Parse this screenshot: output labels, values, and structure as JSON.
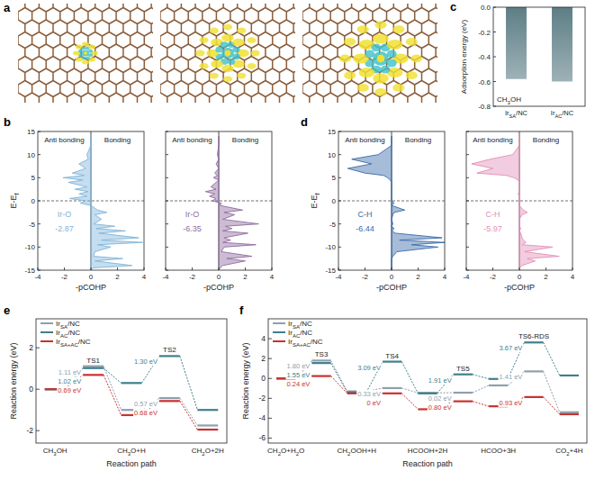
{
  "chart_data": [
    {
      "type": "diagram",
      "panel": "a"
    },
    {
      "type": "cohp",
      "panel": "b",
      "ylabel": "E-Ef",
      "xlabel": "-pCOHP",
      "annotations": [
        "Anti bonding",
        "Bonding"
      ],
      "bond": "Ir-O",
      "icohp": -2.87,
      "xlim": [
        -4,
        4
      ],
      "xticks": [
        -4,
        -2,
        0,
        2,
        4
      ],
      "ylim": [
        -15,
        15
      ],
      "yticks": [
        -15,
        -10,
        -5,
        0,
        5,
        10,
        15
      ],
      "series": [
        {
          "color": "#7fb3d9",
          "x": [
            0,
            0,
            -0.3,
            -0.2,
            -0.9,
            -0.4,
            -1.4,
            -0.5,
            -2.1,
            -0.6,
            -1.7,
            -0.3,
            -1.2,
            -0.2,
            -0.9,
            -0.3,
            -1.6,
            -0.4,
            -0.8,
            0,
            0.5,
            1.2,
            0.3,
            0.8,
            0.2,
            1.8,
            0.4,
            2.6,
            0.6,
            3.6,
            0.8,
            3.9,
            0.5,
            1.5,
            0.3,
            0.2,
            2.4,
            0.3,
            3.1,
            0.2,
            0
          ],
          "y": [
            14,
            12,
            10,
            9,
            8,
            7,
            6,
            5.5,
            5,
            4.5,
            4,
            3,
            2.5,
            2,
            1.5,
            1,
            0.5,
            0,
            -0.5,
            -1,
            -2,
            -2.5,
            -3,
            -4,
            -5,
            -5.5,
            -6,
            -6.5,
            -7,
            -8,
            -8.5,
            -9,
            -9.5,
            -10,
            -11,
            -12,
            -12.5,
            -13,
            -14,
            -14.5,
            -15
          ]
        }
      ]
    },
    {
      "type": "cohp",
      "xlabel": "-pCOHP",
      "annotations": [
        "Anti bonding",
        "Bonding"
      ],
      "bond": "Ir-O",
      "icohp": -6.35,
      "tick_labels": "x",
      "xlim": [
        -4,
        4
      ],
      "xticks": [
        -4,
        -2,
        0,
        2,
        4
      ],
      "ylim": [
        -15,
        15
      ],
      "yticks": [
        -15,
        -10,
        -5,
        0,
        5,
        10,
        15
      ],
      "series": [
        {
          "color": "#8e6b9e",
          "x": [
            0,
            0,
            -0.1,
            0,
            -0.2,
            0,
            -0.3,
            -0.1,
            -0.4,
            0,
            -0.2,
            -0.6,
            -0.2,
            -1.0,
            -0.3,
            -0.7,
            -0.2,
            -0.5,
            0.2,
            0.1,
            1.8,
            0.4,
            1.2,
            0.3,
            3.0,
            0.5,
            1.0,
            0.3,
            2.2,
            0.4,
            0.9,
            0.3,
            2.8,
            0.4,
            0.2,
            2.5,
            0.6,
            2.0,
            0.3,
            0.1,
            0
          ],
          "y": [
            14,
            12,
            10,
            9,
            8,
            7,
            6,
            5.5,
            5,
            4.5,
            4,
            3,
            2.5,
            2,
            1.5,
            1,
            0.5,
            0,
            -0.5,
            -1,
            -2,
            -2.5,
            -3,
            -4,
            -5,
            -5.5,
            -6,
            -6.5,
            -7,
            -8,
            -8.5,
            -9,
            -9.5,
            -10,
            -11,
            -12,
            -12.5,
            -13,
            -14,
            -14.5,
            -15
          ]
        }
      ]
    },
    {
      "type": "bar",
      "panel": "c",
      "ylabel": "Adsorption energy (eV)",
      "annotations": [
        "CH3OH"
      ],
      "categories": [
        "IrSA/NC",
        "IrAC/NC"
      ],
      "values": [
        -0.58,
        -0.6
      ],
      "color": "#5d7e86",
      "ylim": [
        -0.8,
        0
      ],
      "yticks": [
        {
          "value": 0,
          "label": "0.0"
        },
        -0.2,
        -0.4,
        -0.6,
        -0.8
      ]
    },
    {
      "type": "cohp",
      "panel": "d",
      "ylabel": "E-Ef",
      "xlabel": "-pCOHP",
      "annotations": [
        "Anti bonding",
        "Bonding"
      ],
      "bond": "C-H",
      "icohp": -6.44,
      "xlim": [
        -4,
        4
      ],
      "xticks": [
        -4,
        -2,
        0,
        2,
        4
      ],
      "ylim": [
        -15,
        15
      ],
      "yticks": [
        -15,
        -10,
        -5,
        0,
        5,
        10,
        15
      ],
      "series": [
        {
          "color": "#3a6aa8",
          "x": [
            0,
            0,
            -1.0,
            -3.0,
            -1.5,
            -3.3,
            -2.0,
            -0.6,
            -0.3,
            -0.1,
            0,
            0,
            0,
            0,
            0,
            0,
            0,
            0,
            0.2,
            0,
            1.0,
            0.2,
            0.1,
            0,
            0.1,
            0,
            0.2,
            0,
            0.3,
            3.8,
            0.6,
            4.0,
            1.5,
            3.5,
            0.4,
            0.1,
            0,
            0,
            0,
            0,
            0
          ],
          "y": [
            14,
            12,
            10,
            9,
            8,
            7,
            6,
            5.5,
            5,
            4.5,
            4,
            3,
            2.5,
            2,
            1.5,
            1,
            0.5,
            0,
            -0.5,
            -1,
            -2,
            -2.5,
            -3,
            -4,
            -5,
            -5.5,
            -6,
            -6.5,
            -7,
            -8,
            -8.5,
            -9,
            -9.5,
            -10,
            -11,
            -12,
            -12.5,
            -13,
            -14,
            -14.5,
            -15
          ]
        }
      ]
    },
    {
      "type": "cohp",
      "xlabel": "-pCOHP",
      "annotations": [
        "Anti bonding",
        "Bonding"
      ],
      "bond": "C-H",
      "icohp": -5.97,
      "tick_labels": "x",
      "xlim": [
        -4,
        4
      ],
      "xticks": [
        -4,
        -2,
        0,
        2,
        4
      ],
      "ylim": [
        -15,
        15
      ],
      "yticks": [
        -15,
        -10,
        -5,
        0,
        5,
        10,
        15
      ],
      "series": [
        {
          "color": "#e38fb8",
          "x": [
            0,
            0,
            -0.5,
            -2.2,
            -3.6,
            -2.0,
            -3.2,
            -1.0,
            -0.4,
            -0.1,
            0,
            0,
            0,
            0,
            -0.1,
            0,
            0,
            0,
            0,
            0,
            0.3,
            0.6,
            0.2,
            0,
            0,
            0,
            0.1,
            0,
            0.1,
            0.2,
            0.3,
            0.5,
            0.2,
            2.5,
            0.4,
            3.0,
            0.6,
            1.2,
            0.2,
            0,
            0
          ],
          "y": [
            14,
            12,
            10,
            9,
            8,
            7,
            6,
            5.5,
            5,
            4.5,
            4,
            3,
            2.5,
            2,
            1.5,
            1,
            0.5,
            0,
            -0.5,
            -1,
            -2,
            -2.5,
            -3,
            -4,
            -5,
            -5.5,
            -6,
            -6.5,
            -7,
            -8,
            -8.5,
            -9,
            -9.5,
            -10,
            -11,
            -12,
            -12.5,
            -13,
            -14,
            -14.5,
            -15
          ]
        }
      ]
    },
    {
      "type": "energy_profile",
      "panel": "e",
      "ylabel": "Reaction energy (eV)",
      "xlabel": "Reaction path",
      "legend": "upper left",
      "categories": [
        "CH3OH",
        null,
        "CH3O+H",
        null,
        "CH2O+2H"
      ],
      "ts_labels": [
        null,
        "TS1",
        null,
        "TS2",
        null
      ],
      "ylim": [
        -2.6,
        3.4
      ],
      "yticks": [
        -2,
        0,
        2
      ],
      "series": [
        {
          "name": "IrSA/NC",
          "color": "#8e9fad",
          "values": [
            0,
            1.11,
            -1.0,
            -0.43,
            -1.75
          ],
          "barrier_labels": [
            null,
            "1.11 eV",
            null,
            "0.57 eV",
            null
          ]
        },
        {
          "name": "IrAC/NC",
          "color": "#3f7f8c",
          "values": [
            0,
            1.02,
            0.3,
            1.6,
            -1.0
          ],
          "barrier_labels": [
            null,
            "1.02 eV",
            null,
            "1.30 eV",
            null
          ]
        },
        {
          "name": "IrSA+AC/NC",
          "color": "#c8322f",
          "values": [
            0,
            0.69,
            -1.25,
            -0.57,
            -1.95
          ],
          "barrier_labels": [
            null,
            "0.69 eV",
            null,
            "0.68 eV",
            null
          ]
        }
      ]
    },
    {
      "type": "energy_profile",
      "panel": "f",
      "ylabel": "Reaction energy (eV)",
      "xlabel": "Reaction path",
      "legend": "upper left",
      "categories": [
        "CH2O+H2O",
        null,
        "CH2OOH+H",
        null,
        "HCOOH+2H",
        null,
        "HCOO+3H",
        null,
        "CO2+4H"
      ],
      "ts_labels": [
        null,
        "TS3",
        null,
        "TS4",
        null,
        "TS5",
        null,
        "TS6-RDS",
        null
      ],
      "ylim": [
        -6.5,
        6
      ],
      "yticks": [
        -6,
        -4,
        -2,
        0,
        2,
        4
      ],
      "series": [
        {
          "name": "IrSA/NC",
          "color": "#8e9fad",
          "values": [
            0,
            1.8,
            -1.3,
            -0.97,
            -1.45,
            -1.43,
            -0.7,
            0.71,
            -3.4
          ],
          "barrier_labels": [
            null,
            "1.80 eV",
            null,
            "0.33 eV",
            null,
            "0.02 eV",
            null,
            "1.41 eV",
            null
          ]
        },
        {
          "name": "IrAC/NC",
          "color": "#3f7f8c",
          "values": [
            0,
            1.55,
            -1.4,
            1.69,
            -1.5,
            0.41,
            -0.05,
            3.62,
            0.3
          ],
          "barrier_labels": [
            null,
            "1.55 eV",
            null,
            "3.09 eV",
            null,
            "1.91 eV",
            null,
            "3.67 eV",
            null
          ]
        },
        {
          "name": "IrSA+AC/NC",
          "color": "#c8322f",
          "values": [
            0,
            0.24,
            -1.5,
            -1.5,
            -3.1,
            -2.3,
            -2.8,
            -1.87,
            -3.6
          ],
          "barrier_labels": [
            null,
            "0.24 eV",
            null,
            "0 eV",
            null,
            "0.80 eV",
            null,
            "0.93 eV",
            null
          ]
        }
      ]
    }
  ]
}
